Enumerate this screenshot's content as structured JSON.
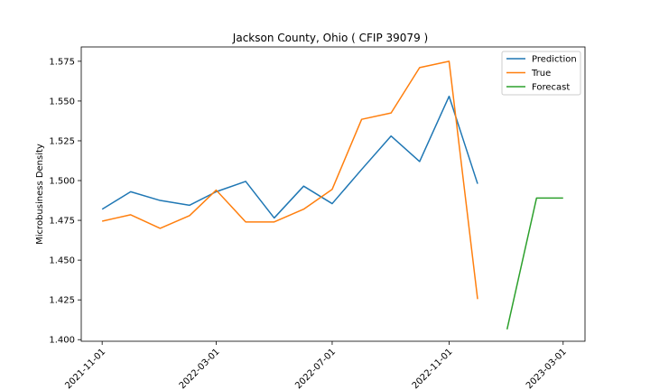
{
  "chart_data": {
    "type": "line",
    "title": "Jackson County, Ohio ( CFIP 39079 )",
    "xlabel": "",
    "ylabel": "Microbusiness Density",
    "ylim": [
      1.399,
      1.584
    ],
    "yticks": [
      "1.400",
      "1.425",
      "1.450",
      "1.475",
      "1.500",
      "1.525",
      "1.550",
      "1.575"
    ],
    "xticks": [
      "2021-11-01",
      "2022-03-01",
      "2022-07-01",
      "2022-11-01",
      "2023-03-01"
    ],
    "xlim": [
      "2021-10-10",
      "2023-03-24"
    ],
    "grid": false,
    "legend_position": "top-right",
    "series": [
      {
        "name": "Prediction",
        "color": "#1f77b4",
        "x": [
          "2021-11-01",
          "2021-12-01",
          "2022-01-01",
          "2022-02-01",
          "2022-03-01",
          "2022-04-01",
          "2022-05-01",
          "2022-06-01",
          "2022-07-01",
          "2022-08-01",
          "2022-09-01",
          "2022-10-01",
          "2022-11-01",
          "2022-12-01"
        ],
        "values": [
          1.482,
          1.493,
          1.4875,
          1.4845,
          1.493,
          1.4995,
          1.4765,
          1.4965,
          1.4855,
          1.507,
          1.528,
          1.512,
          1.553,
          1.498
        ]
      },
      {
        "name": "True",
        "color": "#ff7f0e",
        "x": [
          "2021-11-01",
          "2021-12-01",
          "2022-01-01",
          "2022-02-01",
          "2022-03-01",
          "2022-04-01",
          "2022-05-01",
          "2022-06-01",
          "2022-07-01",
          "2022-08-01",
          "2022-09-01",
          "2022-10-01",
          "2022-11-01",
          "2022-12-01"
        ],
        "values": [
          1.4745,
          1.4785,
          1.47,
          1.478,
          1.494,
          1.474,
          1.474,
          1.482,
          1.4945,
          1.5385,
          1.5425,
          1.571,
          1.575,
          1.4255
        ]
      },
      {
        "name": "Forecast",
        "color": "#2ca02c",
        "x": [
          "2023-01-01",
          "2023-02-01",
          "2023-03-01"
        ],
        "values": [
          1.4065,
          1.489,
          1.489
        ]
      }
    ]
  }
}
